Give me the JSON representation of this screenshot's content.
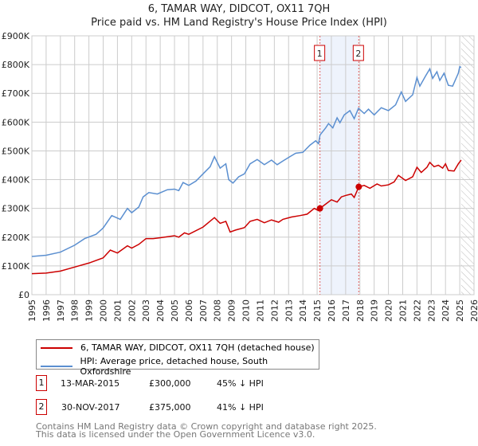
{
  "chart_data": {
    "type": "line",
    "title": "6, TAMAR WAY, DIDCOT, OX11 7QH",
    "subtitle": "Price paid vs. HM Land Registry's House Price Index (HPI)",
    "xlim": [
      1995,
      2026
    ],
    "ylim": [
      0,
      900000
    ],
    "x_ticks": [
      "1995",
      "1996",
      "1997",
      "1998",
      "1999",
      "2000",
      "2001",
      "2002",
      "2003",
      "2004",
      "2005",
      "2006",
      "2007",
      "2008",
      "2009",
      "2010",
      "2011",
      "2012",
      "2013",
      "2014",
      "2015",
      "2016",
      "2017",
      "2018",
      "2019",
      "2020",
      "2021",
      "2022",
      "2023",
      "2024",
      "2025",
      "2026"
    ],
    "y_ticks": [
      {
        "v": 0,
        "label": "£0"
      },
      {
        "v": 100000,
        "label": "£100K"
      },
      {
        "v": 200000,
        "label": "£200K"
      },
      {
        "v": 300000,
        "label": "£300K"
      },
      {
        "v": 400000,
        "label": "£400K"
      },
      {
        "v": 500000,
        "label": "£500K"
      },
      {
        "v": 600000,
        "label": "£600K"
      },
      {
        "v": 700000,
        "label": "£700K"
      },
      {
        "v": 800000,
        "label": "£800K"
      },
      {
        "v": 900000,
        "label": "£900K"
      }
    ],
    "grid": true,
    "shaded_range": [
      2015.2,
      2017.92
    ],
    "hatched_from": 2025.1,
    "series": [
      {
        "name": "6, TAMAR WAY, DIDCOT, OX11 7QH (detached house)",
        "color": "#cc0000",
        "points": [
          [
            1995,
            73
          ],
          [
            1996,
            75
          ],
          [
            1997,
            82
          ],
          [
            1998,
            96
          ],
          [
            1999,
            110
          ],
          [
            2000,
            128
          ],
          [
            2000.5,
            155
          ],
          [
            2001,
            145
          ],
          [
            2001.7,
            170
          ],
          [
            2002,
            162
          ],
          [
            2002.5,
            175
          ],
          [
            2003,
            195
          ],
          [
            2003.5,
            195
          ],
          [
            2004,
            198
          ],
          [
            2005,
            205
          ],
          [
            2005.3,
            200
          ],
          [
            2005.7,
            215
          ],
          [
            2006,
            210
          ],
          [
            2007,
            235
          ],
          [
            2007.8,
            268
          ],
          [
            2008.2,
            248
          ],
          [
            2008.6,
            255
          ],
          [
            2008.9,
            218
          ],
          [
            2009.3,
            225
          ],
          [
            2009.9,
            233
          ],
          [
            2010.3,
            255
          ],
          [
            2010.8,
            262
          ],
          [
            2011.3,
            250
          ],
          [
            2011.8,
            260
          ],
          [
            2012.3,
            252
          ],
          [
            2012.6,
            262
          ],
          [
            2013.2,
            270
          ],
          [
            2013.8,
            275
          ],
          [
            2014.3,
            280
          ],
          [
            2014.8,
            300
          ],
          [
            2015.1,
            292
          ],
          [
            2015.2,
            300
          ],
          [
            2015.6,
            315
          ],
          [
            2016,
            330
          ],
          [
            2016.4,
            322
          ],
          [
            2016.7,
            340
          ],
          [
            2017,
            345
          ],
          [
            2017.4,
            350
          ],
          [
            2017.6,
            338
          ],
          [
            2017.92,
            375
          ],
          [
            2018.3,
            380
          ],
          [
            2018.7,
            370
          ],
          [
            2019.2,
            385
          ],
          [
            2019.5,
            378
          ],
          [
            2020,
            382
          ],
          [
            2020.4,
            392
          ],
          [
            2020.7,
            415
          ],
          [
            2021.2,
            397
          ],
          [
            2021.7,
            410
          ],
          [
            2022,
            443
          ],
          [
            2022.3,
            425
          ],
          [
            2022.7,
            443
          ],
          [
            2022.9,
            460
          ],
          [
            2023.2,
            445
          ],
          [
            2023.5,
            450
          ],
          [
            2023.8,
            440
          ],
          [
            2024,
            455
          ],
          [
            2024.2,
            432
          ],
          [
            2024.6,
            430
          ],
          [
            2024.9,
            455
          ],
          [
            2025.1,
            468
          ]
        ]
      },
      {
        "name": "HPI: Average price, detached house, South Oxfordshire",
        "color": "#5b8fd0",
        "points": [
          [
            1995,
            133
          ],
          [
            1996,
            137
          ],
          [
            1997,
            148
          ],
          [
            1998,
            172
          ],
          [
            1998.7,
            195
          ],
          [
            1999.5,
            210
          ],
          [
            2000,
            232
          ],
          [
            2000.6,
            275
          ],
          [
            2001.2,
            262
          ],
          [
            2001.7,
            300
          ],
          [
            2002,
            285
          ],
          [
            2002.5,
            305
          ],
          [
            2002.8,
            340
          ],
          [
            2003.2,
            355
          ],
          [
            2003.8,
            350
          ],
          [
            2004.5,
            365
          ],
          [
            2005,
            367
          ],
          [
            2005.3,
            362
          ],
          [
            2005.6,
            390
          ],
          [
            2006,
            380
          ],
          [
            2006.5,
            395
          ],
          [
            2007,
            420
          ],
          [
            2007.5,
            445
          ],
          [
            2007.8,
            480
          ],
          [
            2008.2,
            440
          ],
          [
            2008.6,
            455
          ],
          [
            2008.8,
            400
          ],
          [
            2009.1,
            388
          ],
          [
            2009.5,
            410
          ],
          [
            2009.9,
            420
          ],
          [
            2010.3,
            455
          ],
          [
            2010.8,
            470
          ],
          [
            2011.3,
            452
          ],
          [
            2011.8,
            468
          ],
          [
            2012.2,
            452
          ],
          [
            2012.6,
            465
          ],
          [
            2013.1,
            480
          ],
          [
            2013.5,
            492
          ],
          [
            2014,
            495
          ],
          [
            2014.5,
            520
          ],
          [
            2014.9,
            535
          ],
          [
            2015.1,
            525
          ],
          [
            2015.2,
            555
          ],
          [
            2015.6,
            580
          ],
          [
            2015.8,
            595
          ],
          [
            2016.1,
            580
          ],
          [
            2016.4,
            615
          ],
          [
            2016.6,
            598
          ],
          [
            2016.9,
            625
          ],
          [
            2017.3,
            640
          ],
          [
            2017.6,
            612
          ],
          [
            2017.9,
            648
          ],
          [
            2018.3,
            630
          ],
          [
            2018.6,
            645
          ],
          [
            2019,
            625
          ],
          [
            2019.5,
            650
          ],
          [
            2020,
            640
          ],
          [
            2020.5,
            660
          ],
          [
            2020.9,
            705
          ],
          [
            2021.2,
            672
          ],
          [
            2021.7,
            695
          ],
          [
            2022,
            755
          ],
          [
            2022.2,
            725
          ],
          [
            2022.6,
            760
          ],
          [
            2022.9,
            785
          ],
          [
            2023.1,
            752
          ],
          [
            2023.4,
            775
          ],
          [
            2023.6,
            745
          ],
          [
            2023.9,
            770
          ],
          [
            2024.2,
            728
          ],
          [
            2024.5,
            725
          ],
          [
            2024.9,
            770
          ],
          [
            2025.0,
            793
          ],
          [
            2025.1,
            790
          ]
        ]
      }
    ],
    "value_unit": "thousands GBP",
    "markers": [
      {
        "label": "1",
        "x": 2015.2,
        "y": 300
      },
      {
        "label": "2",
        "x": 2017.92,
        "y": 375
      }
    ]
  },
  "legend": {
    "items": [
      "6, TAMAR WAY, DIDCOT, OX11 7QH (detached house)",
      "HPI: Average price, detached house, South Oxfordshire"
    ]
  },
  "transactions": [
    {
      "num": "1",
      "date": "13-MAR-2015",
      "price": "£300,000",
      "hpi": "45% ↓ HPI"
    },
    {
      "num": "2",
      "date": "30-NOV-2017",
      "price": "£375,000",
      "hpi": "41% ↓ HPI"
    }
  ],
  "footer": {
    "line1": "Contains HM Land Registry data © Crown copyright and database right 2025.",
    "line2": "This data is licensed under the Open Government Licence v3.0."
  }
}
